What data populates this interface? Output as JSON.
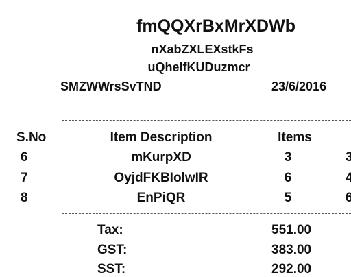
{
  "receipt": {
    "shop_name": "fmQQXrBxMrXDWb",
    "line_1": "nXabZXLEXstkFs",
    "line_2": "uQhelfKUDuzmcr",
    "cashier": "SMZWWrsSvTND",
    "date": "23/6/2016",
    "headers": {
      "sno": "S.No",
      "description": "Item Description",
      "items": "Items",
      "price_partial": ""
    },
    "rows": [
      {
        "sno": "6",
        "description": "mKurpXD",
        "items": "3",
        "price_partial": "3"
      },
      {
        "sno": "7",
        "description": "OyjdFKBIolwIR",
        "items": "6",
        "price_partial": "4"
      },
      {
        "sno": "8",
        "description": "EnPiQR",
        "items": "5",
        "price_partial": "6"
      }
    ],
    "totals": [
      {
        "label": "Tax:",
        "amount": "551.00"
      },
      {
        "label": "GST:",
        "amount": "383.00"
      },
      {
        "label": "SST:",
        "amount": "292.00"
      }
    ]
  }
}
